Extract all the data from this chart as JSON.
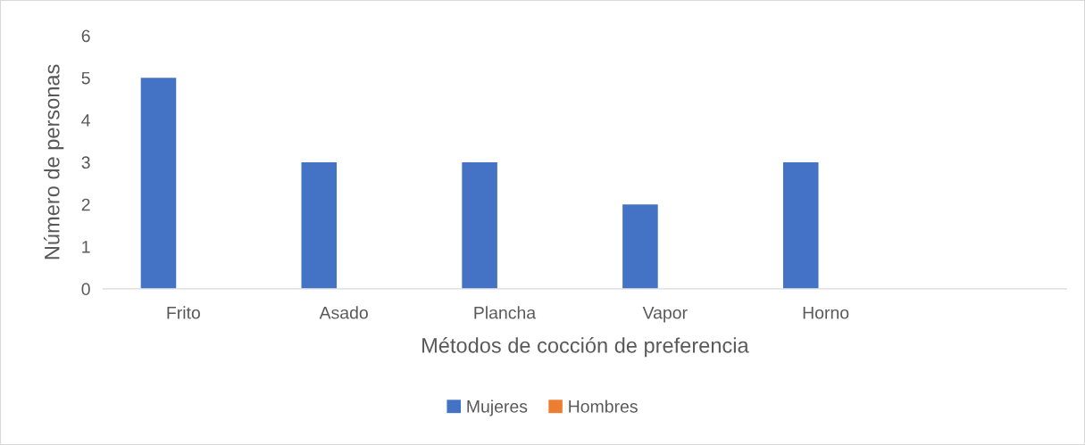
{
  "chart_data": {
    "type": "bar",
    "xlabel": "Métodos de cocción de preferencia",
    "ylabel": "Número de personas",
    "categories": [
      "Frito",
      "Asado",
      "Plancha",
      "Vapor",
      "Horno",
      null
    ],
    "series": [
      {
        "name": "Mujeres",
        "color": "#4472c4",
        "values": [
          5,
          3,
          3,
          2,
          3,
          null
        ]
      },
      {
        "name": "Hombres",
        "color": "#ed7d31",
        "values": [
          null,
          null,
          null,
          null,
          null,
          null
        ]
      }
    ],
    "ylim": [
      0,
      6
    ],
    "yticks": [
      0,
      1,
      2,
      3,
      4,
      5,
      6
    ],
    "grid": false,
    "legend": "bottom"
  }
}
